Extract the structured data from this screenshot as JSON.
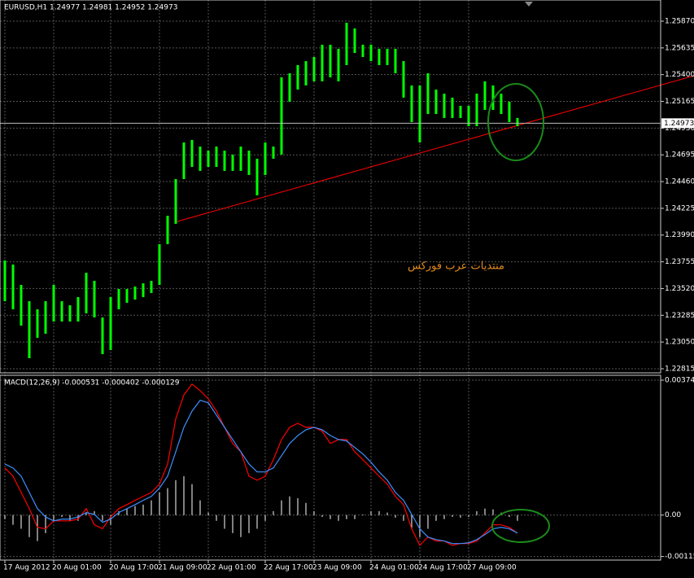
{
  "chart_data": [
    {
      "type": "range_bar",
      "title": "EURUSD,H1  1.24977 1.24981 1.24952 1.24973",
      "annotation": "منتديات عرب فوركس",
      "current_price": 1.24973,
      "color": "#00ff00",
      "grid": true,
      "categories": [
        "17 Aug 2012",
        null,
        null,
        null,
        null,
        null,
        "20 Aug 01:00",
        null,
        null,
        null,
        null,
        null,
        null,
        "20 Aug 17:00",
        null,
        null,
        null,
        null,
        null,
        "21 Aug 09:00",
        null,
        null,
        null,
        null,
        null,
        "22 Aug 01:00",
        null,
        null,
        null,
        null,
        null,
        null,
        "22 Aug 17:00",
        null,
        null,
        null,
        null,
        null,
        "23 Aug 09:00",
        null,
        null,
        null,
        null,
        null,
        null,
        "24 Aug 01:00",
        null,
        null,
        null,
        null,
        null,
        "24 Aug 17:00",
        null,
        null,
        null,
        null,
        null,
        "27 Aug 09:00",
        null,
        null,
        null,
        null,
        null,
        null
      ],
      "high": [
        1.23767,
        1.23731,
        1.23552,
        1.23409,
        1.23338,
        1.23409,
        1.23552,
        1.23409,
        1.23373,
        1.23445,
        1.23659,
        1.23588,
        1.23266,
        1.23445,
        1.23516,
        1.23516,
        1.23538,
        1.23566,
        1.23588,
        1.2391,
        1.2416,
        1.24482,
        1.24804,
        1.24826,
        1.24768,
        1.24732,
        1.24768,
        1.24732,
        1.24697,
        1.24768,
        1.24732,
        1.24661,
        1.24804,
        1.24768,
        1.25376,
        1.25412,
        1.25484,
        1.25519,
        1.25555,
        1.25663,
        1.25663,
        1.25627,
        1.25856,
        1.25806,
        1.25663,
        1.25663,
        1.25627,
        1.25627,
        1.25627,
        1.25519,
        1.25305,
        1.25305,
        1.25412,
        1.25269,
        1.25233,
        1.25198,
        1.25126,
        1.25126,
        1.25233,
        1.25341,
        1.25305,
        1.25233,
        1.25162,
        1.25019
      ],
      "low": [
        1.23409,
        1.23338,
        1.23194,
        1.22908,
        1.23087,
        1.23123,
        1.2323,
        1.2323,
        1.2323,
        1.2323,
        1.23302,
        1.23266,
        1.22944,
        1.2298,
        1.23338,
        1.23395,
        1.23423,
        1.23445,
        1.23481,
        1.23552,
        1.2391,
        1.24089,
        1.24482,
        1.24589,
        1.24554,
        1.24589,
        1.24589,
        1.24554,
        1.24554,
        1.24554,
        1.24518,
        1.24339,
        1.24518,
        1.24661,
        1.24697,
        1.25162,
        1.25269,
        1.25305,
        1.25341,
        1.25341,
        1.25376,
        1.25341,
        1.25484,
        1.25591,
        1.25555,
        1.25519,
        1.25484,
        1.25484,
        1.25412,
        1.25198,
        1.24983,
        1.24804,
        1.25054,
        1.25054,
        1.25019,
        1.25019,
        1.25019,
        1.24947,
        1.24947,
        1.2509,
        1.2509,
        1.25054,
        1.24983,
        1.24947
      ],
      "ylim": [
        1.22779,
        1.26056
      ],
      "yticks": [
        {
          "value": 1.2587,
          "label": "1.25870"
        },
        {
          "value": 1.25635,
          "label": "1.25635"
        },
        {
          "value": 1.254,
          "label": "1.25400"
        },
        {
          "value": 1.25165,
          "label": "1.25165"
        },
        {
          "value": 1.2493,
          "label": "1.24930"
        },
        {
          "value": 1.24695,
          "label": "1.24695"
        },
        {
          "value": 1.2446,
          "label": "1.24460"
        },
        {
          "value": 1.24225,
          "label": "1.24225"
        },
        {
          "value": 1.2399,
          "label": "1.23990"
        },
        {
          "value": 1.23755,
          "label": "1.23755"
        },
        {
          "value": 1.2352,
          "label": "1.23520"
        },
        {
          "value": 1.23285,
          "label": "1.23285"
        },
        {
          "value": 1.2305,
          "label": "1.23050"
        },
        {
          "value": 1.22815,
          "label": "1.22815"
        }
      ]
    },
    {
      "type": "macd",
      "title": "MACD(12,26,9) -0.000531 -0.000402 -0.000129",
      "grid": true,
      "series": [
        {
          "color": "#ff0000",
          "values": [
            0.00131,
            0.00108,
            0.00063,
            0.00018,
            -0.00034,
            -0.00038,
            -0.00016,
            -0.00016,
            -0.00016,
            -0.00011,
            0.00018,
            -0.00027,
            -0.00038,
            -5e-05,
            0.00018,
            0.00029,
            0.00041,
            0.00052,
            0.00063,
            0.00086,
            0.00142,
            0.00267,
            0.00334,
            0.00364,
            0.00346,
            0.00323,
            0.00289,
            0.00244,
            0.00199,
            0.00176,
            0.00108,
            0.00097,
            0.00108,
            0.00154,
            0.0021,
            0.00244,
            0.00255,
            0.00244,
            0.00244,
            0.00233,
            0.00199,
            0.0021,
            0.0021,
            0.00176,
            0.00154,
            0.00131,
            0.00108,
            0.00086,
            0.00052,
            0.00029,
            -0.00038,
            -0.00084,
            -0.00061,
            -0.00072,
            -0.00072,
            -0.00084,
            -0.00079,
            -0.00079,
            -0.00072,
            -0.0005,
            -0.00027,
            -0.00027,
            -0.00034,
            -0.0005
          ]
        },
        {
          "color": "#3d8fff",
          "values": [
            0.00142,
            0.00131,
            0.00108,
            0.00063,
            0.00018,
            -5e-05,
            -0.00016,
            -0.00011,
            -0.00011,
            -5e-05,
            7e-05,
            2e-05,
            -0.0002,
            -0.00011,
            7e-05,
            0.00018,
            0.00029,
            0.00041,
            0.00052,
            0.00075,
            0.00108,
            0.00176,
            0.00244,
            0.00289,
            0.00319,
            0.00312,
            0.00278,
            0.00244,
            0.0021,
            0.00176,
            0.00142,
            0.0012,
            0.0012,
            0.00131,
            0.00165,
            0.00199,
            0.00221,
            0.00237,
            0.00244,
            0.00237,
            0.00221,
            0.0021,
            0.00206,
            0.00188,
            0.0017,
            0.00147,
            0.0012,
            0.00097,
            0.00063,
            0.00041,
            2e-05,
            -0.00038,
            -0.00061,
            -0.00068,
            -0.00072,
            -0.00079,
            -0.00079,
            -0.00077,
            -0.00068,
            -0.00054,
            -0.00038,
            -0.00034,
            -0.00038,
            -0.0005
          ]
        }
      ],
      "histogram": {
        "color": "#ffffff",
        "values": [
          -0.00011,
          -0.00027,
          -0.00038,
          -0.00061,
          -0.00072,
          -0.0005,
          -0.00016,
          -5e-05,
          -0.00016,
          -0.00016,
          7e-05,
          0.00011,
          -0.00016,
          -0.00027,
          0.00011,
          0.00018,
          0.00025,
          0.00029,
          0.00041,
          0.00063,
          0.00075,
          0.00097,
          0.00108,
          0.00086,
          0.00041,
          7e-05,
          -0.00016,
          -0.00038,
          -0.0005,
          -0.00061,
          -0.0005,
          -0.00038,
          -0.00016,
          0.00011,
          0.00041,
          0.00052,
          0.00047,
          0.00034,
          0.00011,
          -5e-05,
          -0.00011,
          -0.00016,
          -0.00011,
          -0.00011,
          2e-05,
          0.00011,
          0.00011,
          7e-05,
          -7e-05,
          -0.00016,
          -0.00038,
          -0.00061,
          -0.00038,
          -0.00016,
          -0.00011,
          -5e-05,
          -7e-05,
          -5e-05,
          0.00011,
          0.00018,
          0.00016,
          7e-05,
          -5e-05,
          -0.00016
        ]
      },
      "ylim": [
        -0.00125,
        0.003749
      ],
      "yticks": [
        0.003749,
        {
          "value": 0,
          "label": "0.00"
        },
        -0.00115
      ]
    }
  ]
}
